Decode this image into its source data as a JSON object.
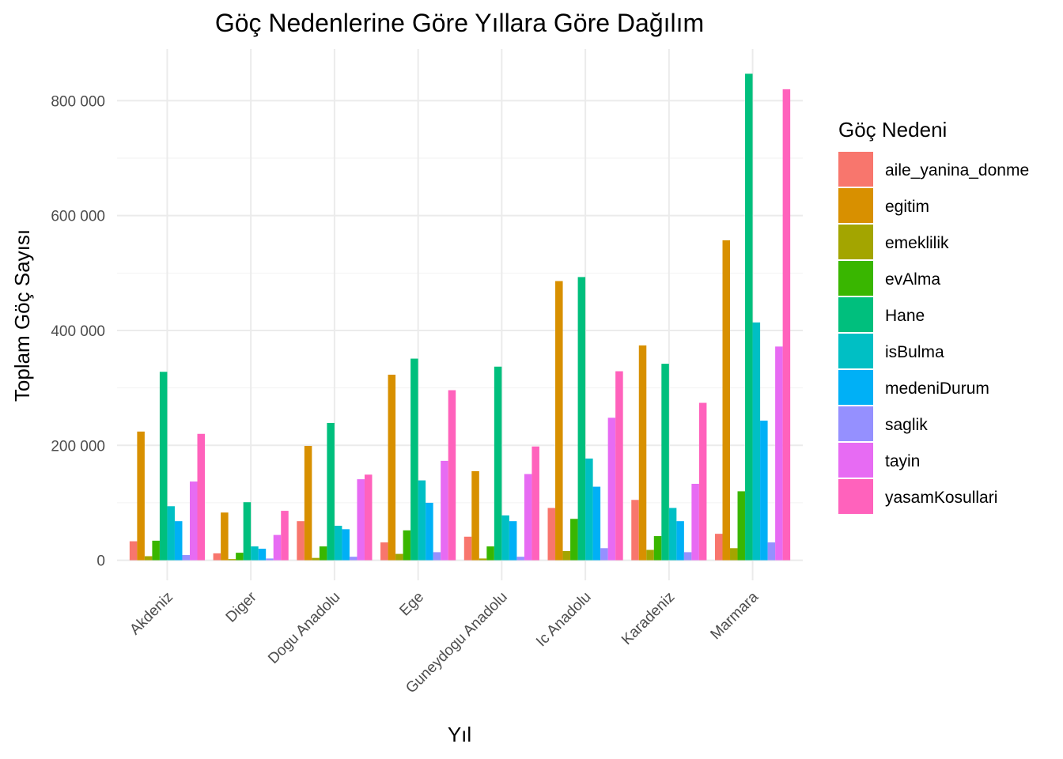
{
  "chart_data": {
    "type": "bar",
    "title": "Göç Nedenlerine Göre Yıllara Göre Dağılım",
    "xlabel": "Yıl",
    "ylabel": "Toplam Göç Sayısı",
    "ylim": [
      -35000,
      890000
    ],
    "yticks": [
      0,
      200000,
      400000,
      600000,
      800000
    ],
    "ytick_labels": [
      "0",
      "200 000",
      "400 000",
      "600 000",
      "800 000"
    ],
    "grid": true,
    "legend_position": "right",
    "legend_title": "Göç Nedeni",
    "categories": [
      "Akdeniz",
      "Diger",
      "Dogu Anadolu",
      "Ege",
      "Guneydogu Anadolu",
      "Ic Anadolu",
      "Karadeniz",
      "Marmara"
    ],
    "series": [
      {
        "name": "aile_yanina_donme",
        "color": "#F8766D",
        "values": [
          33000,
          12000,
          68000,
          31000,
          41000,
          91000,
          105000,
          46000
        ]
      },
      {
        "name": "egitim",
        "color": "#D89000",
        "values": [
          224000,
          83000,
          199000,
          323000,
          155000,
          486000,
          374000,
          557000
        ]
      },
      {
        "name": "emeklilik",
        "color": "#A3A500",
        "values": [
          7000,
          2000,
          4000,
          11000,
          3000,
          16000,
          18000,
          21000
        ]
      },
      {
        "name": "evAlma",
        "color": "#39B600",
        "values": [
          34000,
          13000,
          24000,
          52000,
          24000,
          72000,
          42000,
          120000
        ]
      },
      {
        "name": "Hane",
        "color": "#00BF7D",
        "values": [
          328000,
          101000,
          239000,
          351000,
          337000,
          493000,
          342000,
          847000
        ]
      },
      {
        "name": "isBulma",
        "color": "#00BFC4",
        "values": [
          94000,
          24000,
          60000,
          139000,
          78000,
          177000,
          91000,
          414000
        ]
      },
      {
        "name": "medeniDurum",
        "color": "#00B0F6",
        "values": [
          68000,
          20000,
          54000,
          100000,
          68000,
          128000,
          68000,
          243000
        ]
      },
      {
        "name": "saglik",
        "color": "#9590FF",
        "values": [
          9000,
          3000,
          6000,
          14000,
          6000,
          21000,
          14000,
          31000
        ]
      },
      {
        "name": "tayin",
        "color": "#E76BF3",
        "values": [
          137000,
          44000,
          141000,
          173000,
          150000,
          248000,
          133000,
          372000
        ]
      },
      {
        "name": "yasamKosullari",
        "color": "#FF62BC",
        "values": [
          220000,
          86000,
          149000,
          296000,
          198000,
          329000,
          274000,
          820000
        ]
      }
    ]
  }
}
